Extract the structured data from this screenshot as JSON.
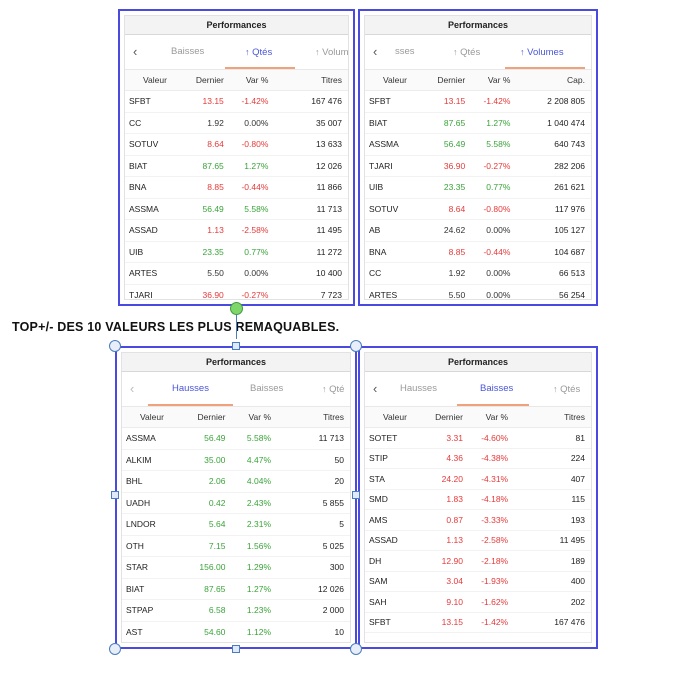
{
  "heading": "TOP+/- DES 10 VALEURS LES PLUS REMAQUABLES.",
  "panels": [
    {
      "title": "Performances",
      "back": "‹",
      "tabs": [
        {
          "label": "Baisses",
          "arrow": "",
          "active": false
        },
        {
          "label": "Qtés",
          "arrow": "↑",
          "active": true
        },
        {
          "label": "Volum",
          "arrow": "↑",
          "active": false
        }
      ],
      "columns": [
        "Valeur",
        "Dernier",
        "Var %",
        "Titres"
      ],
      "rows": [
        [
          "SFBT",
          "13.15",
          "-1.42%",
          "167 476",
          "neg"
        ],
        [
          "CC",
          "1.92",
          "0.00%",
          "35 007",
          "neu"
        ],
        [
          "SOTUV",
          "8.64",
          "-0.80%",
          "13 633",
          "neg"
        ],
        [
          "BIAT",
          "87.65",
          "1.27%",
          "12 026",
          "pos"
        ],
        [
          "BNA",
          "8.85",
          "-0.44%",
          "11 866",
          "neg"
        ],
        [
          "ASSMA",
          "56.49",
          "5.58%",
          "11 713",
          "pos"
        ],
        [
          "ASSAD",
          "1.13",
          "-2.58%",
          "11 495",
          "neg"
        ],
        [
          "UIB",
          "23.35",
          "0.77%",
          "11 272",
          "pos"
        ],
        [
          "ARTES",
          "5.50",
          "0.00%",
          "10 400",
          "neu"
        ],
        [
          "TJARI",
          "36.90",
          "-0.27%",
          "7 723",
          "neg"
        ]
      ]
    },
    {
      "title": "Performances",
      "back": "‹",
      "tabs": [
        {
          "label": "sses",
          "arrow": "",
          "active": false
        },
        {
          "label": "Qtés",
          "arrow": "↑",
          "active": false
        },
        {
          "label": "Volumes",
          "arrow": "↑",
          "active": true
        }
      ],
      "columns": [
        "Valeur",
        "Dernier",
        "Var %",
        "Cap."
      ],
      "rows": [
        [
          "SFBT",
          "13.15",
          "-1.42%",
          "2 208 805",
          "neg"
        ],
        [
          "BIAT",
          "87.65",
          "1.27%",
          "1 040 474",
          "pos"
        ],
        [
          "ASSMA",
          "56.49",
          "5.58%",
          "640 743",
          "pos"
        ],
        [
          "TJARI",
          "36.90",
          "-0.27%",
          "282 206",
          "neg"
        ],
        [
          "UIB",
          "23.35",
          "0.77%",
          "261 621",
          "pos"
        ],
        [
          "SOTUV",
          "8.64",
          "-0.80%",
          "117 976",
          "neg"
        ],
        [
          "AB",
          "24.62",
          "0.00%",
          "105 127",
          "neu"
        ],
        [
          "BNA",
          "8.85",
          "-0.44%",
          "104 687",
          "neg"
        ],
        [
          "CC",
          "1.92",
          "0.00%",
          "66 513",
          "neu"
        ],
        [
          "ARTES",
          "5.50",
          "0.00%",
          "56 254",
          "neu"
        ]
      ]
    },
    {
      "title": "Performances",
      "back": "‹",
      "tabs": [
        {
          "label": "Hausses",
          "arrow": "",
          "active": true
        },
        {
          "label": "Baisses",
          "arrow": "",
          "active": false
        },
        {
          "label": "Qté",
          "arrow": "↑",
          "active": false
        }
      ],
      "columns": [
        "Valeur",
        "Dernier",
        "Var %",
        "Titres"
      ],
      "rows": [
        [
          "ASSMA",
          "56.49",
          "5.58%",
          "11 713",
          "pos"
        ],
        [
          "ALKIM",
          "35.00",
          "4.47%",
          "50",
          "pos"
        ],
        [
          "BHL",
          "2.06",
          "4.04%",
          "20",
          "pos"
        ],
        [
          "UADH",
          "0.42",
          "2.43%",
          "5 855",
          "pos"
        ],
        [
          "LNDOR",
          "5.64",
          "2.31%",
          "5",
          "pos"
        ],
        [
          "OTH",
          "7.15",
          "1.56%",
          "5 025",
          "pos"
        ],
        [
          "STAR",
          "156.00",
          "1.29%",
          "300",
          "pos"
        ],
        [
          "BIAT",
          "87.65",
          "1.27%",
          "12 026",
          "pos"
        ],
        [
          "STPAP",
          "6.58",
          "1.23%",
          "2 000",
          "pos"
        ],
        [
          "AST",
          "54.60",
          "1.12%",
          "10",
          "pos"
        ]
      ]
    },
    {
      "title": "Performances",
      "back": "‹",
      "tabs": [
        {
          "label": "Hausses",
          "arrow": "",
          "active": false
        },
        {
          "label": "Baisses",
          "arrow": "",
          "active": true
        },
        {
          "label": "Qtés",
          "arrow": "↑",
          "active": false
        }
      ],
      "columns": [
        "Valeur",
        "Dernier",
        "Var %",
        "Titres"
      ],
      "rows": [
        [
          "SOTET",
          "3.31",
          "-4.60%",
          "81",
          "neg"
        ],
        [
          "STIP",
          "4.36",
          "-4.38%",
          "224",
          "neg"
        ],
        [
          "STA",
          "24.20",
          "-4.31%",
          "407",
          "neg"
        ],
        [
          "SMD",
          "1.83",
          "-4.18%",
          "115",
          "neg"
        ],
        [
          "AMS",
          "0.87",
          "-3.33%",
          "193",
          "neg"
        ],
        [
          "ASSAD",
          "1.13",
          "-2.58%",
          "11 495",
          "neg"
        ],
        [
          "DH",
          "12.90",
          "-2.18%",
          "189",
          "neg"
        ],
        [
          "SAM",
          "3.04",
          "-1.93%",
          "400",
          "neg"
        ],
        [
          "SAH",
          "9.10",
          "-1.62%",
          "202",
          "neg"
        ],
        [
          "SFBT",
          "13.15",
          "-1.42%",
          "167 476",
          "neg"
        ]
      ]
    }
  ]
}
